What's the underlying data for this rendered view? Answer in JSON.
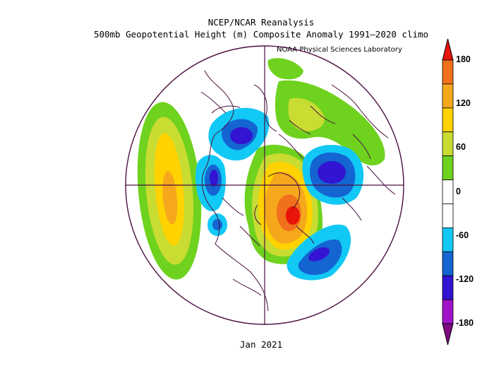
{
  "header": {
    "line1": "NCEP/NCAR Reanalysis",
    "line2": "500mb Geopotential Height (m) Composite Anomaly 1991–2020 climo",
    "credit": "NOAA Physical Sciences Laboratory"
  },
  "footer": {
    "period": "Jan 2021"
  },
  "colorbar": {
    "labels": [
      "180",
      "120",
      "60",
      "0",
      "-60",
      "-120",
      "-180"
    ],
    "colors": [
      "#e8140a",
      "#f0701c",
      "#f5a81c",
      "#ffd200",
      "#c8dc32",
      "#6ed21e",
      "#ffffff",
      "#ffffff",
      "#12c8f5",
      "#1464d2",
      "#3214d2",
      "#a014c8",
      "#7d0a82"
    ]
  },
  "map": {
    "projection": "north polar stereographic",
    "outline_color": "#4a1040"
  }
}
